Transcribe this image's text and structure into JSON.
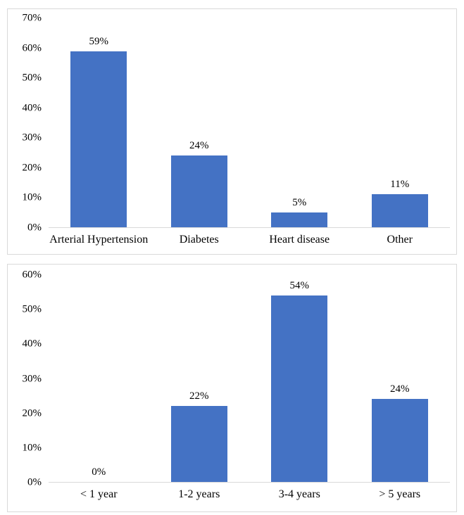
{
  "chart_data": [
    {
      "type": "bar",
      "title": "",
      "xlabel": "",
      "ylabel": "",
      "categories": [
        "Arterial Hypertension",
        "Diabetes",
        "Heart disease",
        "Other"
      ],
      "values": [
        59,
        24,
        5,
        11
      ],
      "value_labels": [
        "59%",
        "24%",
        "5%",
        "11%"
      ],
      "ylim": [
        0,
        70
      ],
      "ytick_labels": [
        "0%",
        "10%",
        "20%",
        "30%",
        "40%",
        "50%",
        "60%",
        "70%"
      ],
      "bar_color": "#4472C4",
      "grid": "off",
      "legend": "none"
    },
    {
      "type": "bar",
      "title": "",
      "xlabel": "",
      "ylabel": "",
      "categories": [
        "< 1 year",
        "1-2 years",
        "3-4 years",
        "> 5 years"
      ],
      "values": [
        0,
        22,
        54,
        24
      ],
      "value_labels": [
        "0%",
        "22%",
        "54%",
        "24%"
      ],
      "ylim": [
        0,
        60
      ],
      "ytick_labels": [
        "0%",
        "10%",
        "20%",
        "30%",
        "40%",
        "50%",
        "60%"
      ],
      "bar_color": "#4472C4",
      "grid": "off",
      "legend": "none"
    }
  ],
  "colors": {
    "bar": "#4472C4",
    "border": "#d9d9d9",
    "axis_line": "#d9d9d9",
    "text": "#000000",
    "background": "#ffffff"
  }
}
